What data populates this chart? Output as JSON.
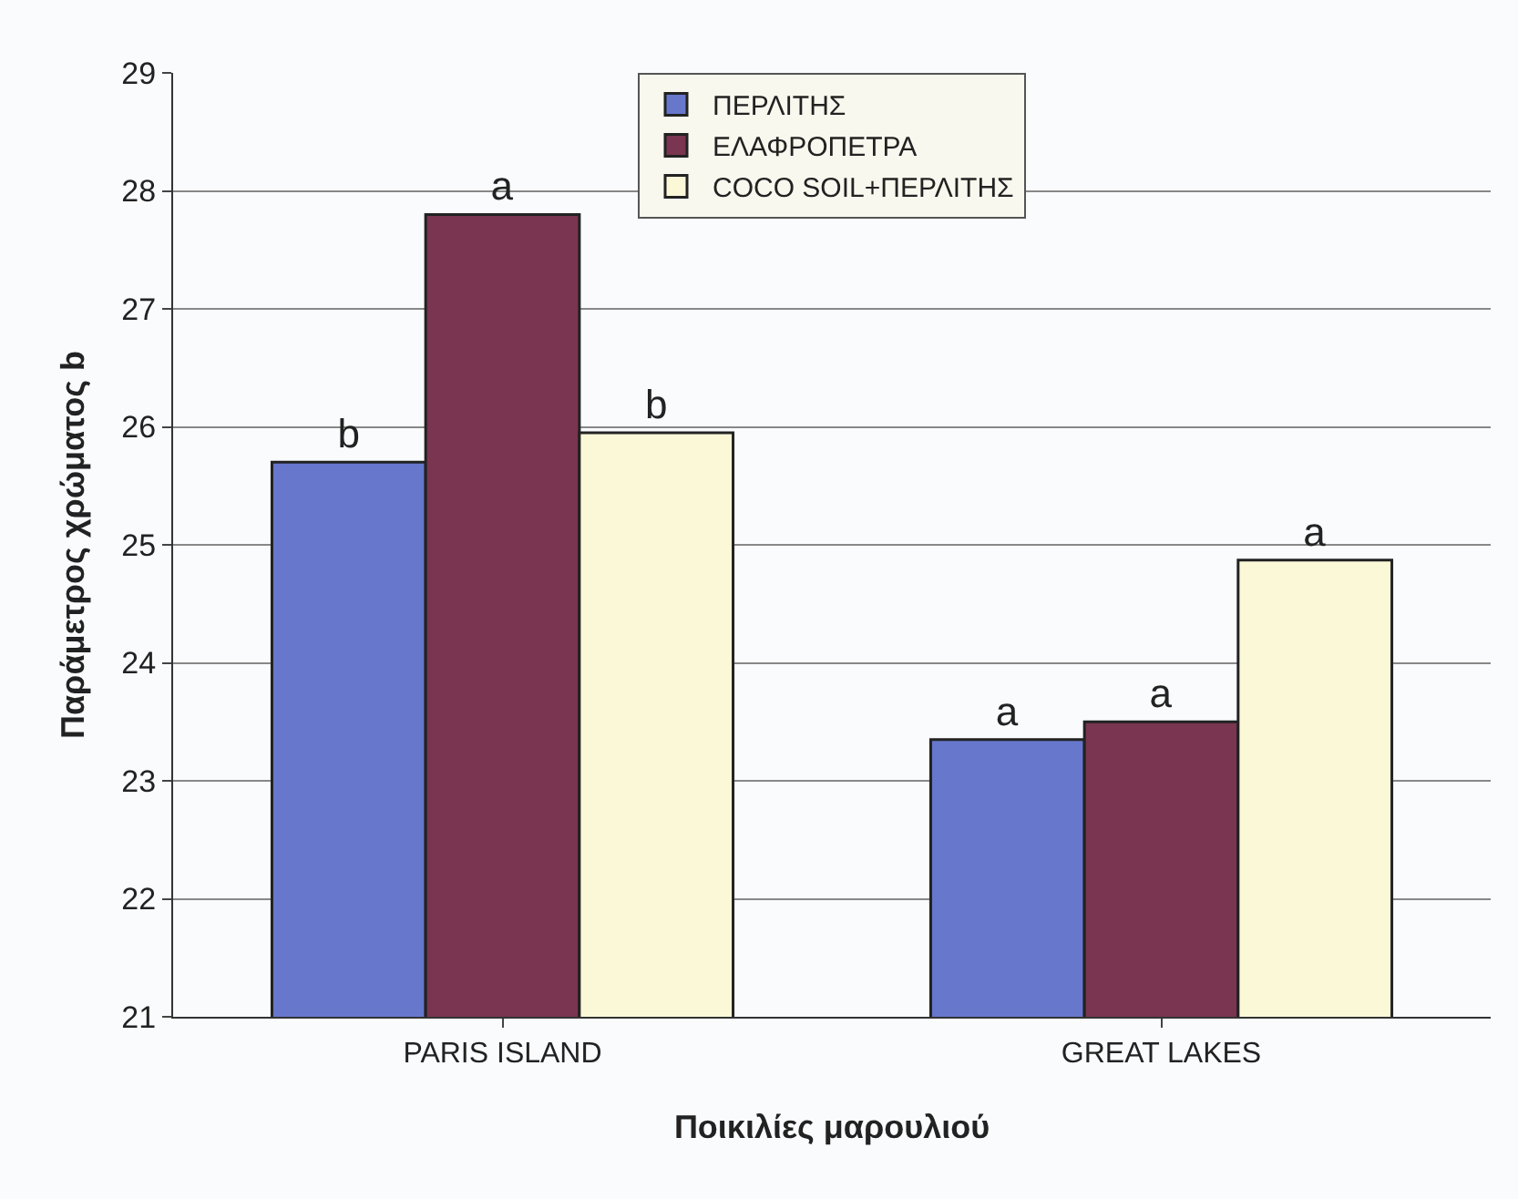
{
  "chart_data": {
    "type": "bar",
    "xlabel": "Ποικιλίες μαρουλιού",
    "ylabel": "Παράμετρος χρώματος b",
    "categories": [
      "PARIS ISLAND",
      "GREAT LAKES"
    ],
    "series": [
      {
        "name": "ΠΕΡΛΙΤΗΣ",
        "color": "#6677cc",
        "values": [
          25.7,
          23.35
        ],
        "value_labels": [
          "b",
          "a"
        ]
      },
      {
        "name": "ΕΛΑΦΡΟΠΕΤΡΑ",
        "color": "#7a3550",
        "values": [
          27.8,
          23.5
        ],
        "value_labels": [
          "a",
          "a"
        ]
      },
      {
        "name": "COCO SOIL+ΠΕΡΛΙΤΗΣ",
        "color": "#fbf8d8",
        "values": [
          25.95,
          24.87
        ],
        "value_labels": [
          "b",
          "a"
        ]
      }
    ],
    "ylim": [
      21,
      29
    ],
    "yticks": [
      21,
      22,
      23,
      24,
      25,
      26,
      27,
      28,
      29
    ],
    "grid": "y",
    "legend": "top"
  }
}
